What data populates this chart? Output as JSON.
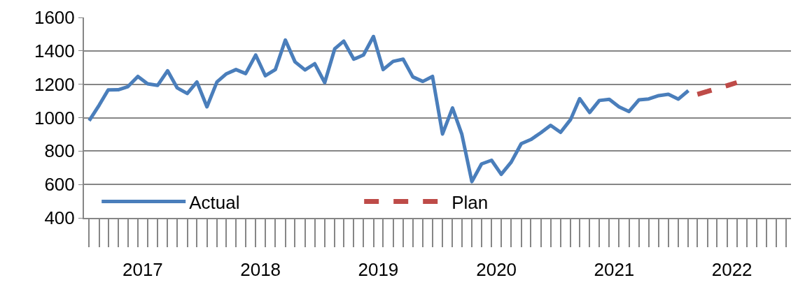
{
  "chart_data": {
    "type": "line",
    "x": [
      "2017-01",
      "2017-02",
      "2017-03",
      "2017-04",
      "2017-05",
      "2017-06",
      "2017-07",
      "2017-08",
      "2017-09",
      "2017-10",
      "2017-11",
      "2017-12",
      "2018-01",
      "2018-02",
      "2018-03",
      "2018-04",
      "2018-05",
      "2018-06",
      "2018-07",
      "2018-08",
      "2018-09",
      "2018-10",
      "2018-11",
      "2018-12",
      "2019-01",
      "2019-02",
      "2019-03",
      "2019-04",
      "2019-05",
      "2019-06",
      "2019-07",
      "2019-08",
      "2019-09",
      "2019-10",
      "2019-11",
      "2019-12",
      "2020-01",
      "2020-02",
      "2020-03",
      "2020-04",
      "2020-05",
      "2020-06",
      "2020-07",
      "2020-08",
      "2020-09",
      "2020-10",
      "2020-11",
      "2020-12",
      "2021-01",
      "2021-02",
      "2021-03",
      "2021-04",
      "2021-05",
      "2021-06",
      "2021-07",
      "2021-08",
      "2021-09",
      "2021-10",
      "2021-11",
      "2021-12",
      "2022-01",
      "2022-02"
    ],
    "series": [
      {
        "name": "Actual",
        "color": "#4a7ebb",
        "line_style": "solid",
        "values": [
          982,
          1075,
          1166,
          1167,
          1186,
          1247,
          1203,
          1193,
          1281,
          1178,
          1145,
          1214,
          1065,
          1214,
          1261,
          1288,
          1264,
          1375,
          1251,
          1288,
          1465,
          1334,
          1286,
          1323,
          1210,
          1412,
          1458,
          1350,
          1375,
          1486,
          1288,
          1337,
          1350,
          1244,
          1217,
          1247,
          902,
          1058,
          900,
          617,
          723,
          745,
          661,
          734,
          844,
          869,
          910,
          954,
          912,
          989,
          1114,
          1031,
          1103,
          1110,
          1065,
          1037,
          1107,
          1112,
          1132,
          1140,
          1111,
          1162
        ]
      },
      {
        "name": "Plan",
        "color": "#be4b48",
        "line_style": "dashed",
        "x": [
          "2022-03",
          "2022-04",
          "2022-05",
          "2022-06",
          "2022-07"
        ],
        "values": [
          1140,
          1157,
          1175,
          1192,
          1210
        ]
      }
    ],
    "xlim": [
      "2016-12-16",
      "2022-12-16"
    ],
    "xticks": [
      {
        "value": "2017-06-16",
        "label": "2017"
      },
      {
        "value": "2018-06-16",
        "label": "2018"
      },
      {
        "value": "2019-06-16",
        "label": "2019"
      },
      {
        "value": "2020-06-16",
        "label": "2020"
      },
      {
        "value": "2021-06-16",
        "label": "2021"
      },
      {
        "value": "2022-06-16",
        "label": "2022"
      }
    ],
    "ylim": [
      400,
      1600
    ],
    "yticks": [
      400,
      600,
      800,
      1000,
      1200,
      1400,
      1600
    ],
    "grid": "y",
    "legend": "bottom left",
    "marker": "none"
  }
}
